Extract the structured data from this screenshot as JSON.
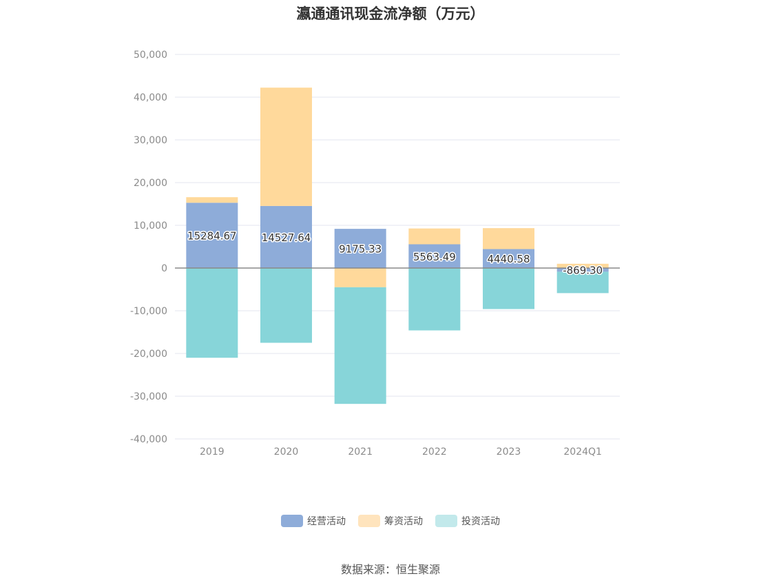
{
  "title": "瀛通通讯现金流净额（万元）",
  "source": "数据来源：恒生聚源",
  "chart_data": {
    "type": "bar",
    "stacked": true,
    "categories": [
      "2019",
      "2020",
      "2021",
      "2022",
      "2023",
      "2024Q1"
    ],
    "series": [
      {
        "name": "经营活动",
        "color": "#8eacd9",
        "values": [
          15284.67,
          14527.64,
          9175.33,
          5563.49,
          4440.58,
          -869.3
        ]
      },
      {
        "name": "筹资活动",
        "color": "#ffd99b",
        "values": [
          1300,
          27700,
          -4500,
          3700,
          4900,
          1000
        ]
      },
      {
        "name": "投资活动",
        "color": "#87d5d9",
        "values": [
          -21000,
          -17500,
          -27300,
          -14600,
          -9600,
          -5000
        ]
      }
    ],
    "data_labels": [
      "15284.67",
      "14527.64",
      "9175.33",
      "5563.49",
      "4440.58",
      "-869.30"
    ],
    "ylim": [
      -40000,
      50000
    ],
    "yticks": [
      50000,
      40000,
      30000,
      20000,
      10000,
      0,
      -10000,
      -20000,
      -30000,
      -40000
    ],
    "ytick_labels": [
      "50,000",
      "40,000",
      "30,000",
      "20,000",
      "10,000",
      "0",
      "-10,000",
      "-20,000",
      "-30,000",
      "-40,000"
    ],
    "grid": true,
    "legend_position": "bottom",
    "legend_colors": [
      "#8eacd9",
      "#ffe4bd",
      "#c2e9eb"
    ]
  }
}
